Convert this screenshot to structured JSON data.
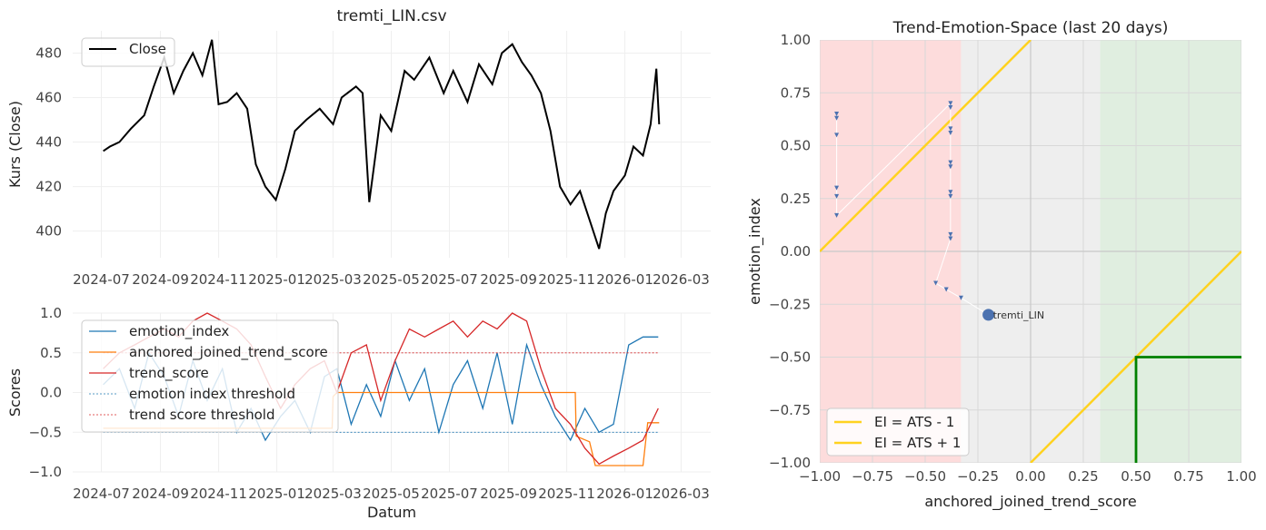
{
  "chart_data": [
    {
      "type": "line",
      "title": "tremti_LIN.csv",
      "xlabel": "",
      "ylabel": "Kurs (Close)",
      "ylim": [
        388,
        490
      ],
      "yticks": [
        400,
        420,
        440,
        460,
        480
      ],
      "xlim": [
        "2024-06-01",
        "2026-04-01"
      ],
      "xticks": [
        "2024-07",
        "2024-09",
        "2024-11",
        "2025-01",
        "2025-03",
        "2025-05",
        "2025-07",
        "2025-09",
        "2025-11",
        "2026-01",
        "2026-03"
      ],
      "grid": true,
      "legend": "top-left",
      "series": [
        {
          "name": "Close",
          "color": "#000000",
          "x": [
            "2024-07-03",
            "2024-07-10",
            "2024-07-20",
            "2024-08-01",
            "2024-08-15",
            "2024-08-25",
            "2024-09-05",
            "2024-09-15",
            "2024-09-25",
            "2024-10-05",
            "2024-10-15",
            "2024-10-25",
            "2024-11-01",
            "2024-11-10",
            "2024-11-20",
            "2024-12-01",
            "2024-12-10",
            "2024-12-20",
            "2024-12-31",
            "2025-01-10",
            "2025-01-20",
            "2025-02-01",
            "2025-02-15",
            "2025-03-01",
            "2025-03-10",
            "2025-03-25",
            "2025-04-01",
            "2025-04-08",
            "2025-04-20",
            "2025-05-01",
            "2025-05-15",
            "2025-05-25",
            "2025-06-10",
            "2025-06-25",
            "2025-07-05",
            "2025-07-20",
            "2025-08-01",
            "2025-08-15",
            "2025-08-25",
            "2025-09-05",
            "2025-09-15",
            "2025-09-25",
            "2025-10-05",
            "2025-10-15",
            "2025-10-25",
            "2025-11-05",
            "2025-11-15",
            "2025-11-25",
            "2025-12-05",
            "2025-12-12",
            "2025-12-20",
            "2026-01-01",
            "2026-01-10",
            "2026-01-20",
            "2026-01-28",
            "2026-02-03",
            "2026-02-06"
          ],
          "values": [
            436,
            438,
            440,
            446,
            452,
            465,
            478,
            462,
            472,
            480,
            470,
            486,
            457,
            458,
            462,
            455,
            430,
            420,
            414,
            428,
            445,
            450,
            455,
            448,
            460,
            465,
            462,
            413,
            452,
            445,
            472,
            468,
            478,
            462,
            472,
            458,
            475,
            466,
            480,
            484,
            476,
            470,
            462,
            445,
            420,
            412,
            418,
            405,
            392,
            408,
            418,
            425,
            438,
            434,
            448,
            473,
            448
          ]
        }
      ]
    },
    {
      "type": "line",
      "title": "",
      "xlabel": "Datum",
      "ylabel": "Scores",
      "ylim": [
        -1.0,
        1.0
      ],
      "yticks": [
        -1.0,
        -0.5,
        0.0,
        0.5,
        1.0
      ],
      "xlim": [
        "2024-06-01",
        "2026-04-01"
      ],
      "xticks": [
        "2024-07",
        "2024-09",
        "2024-11",
        "2025-01",
        "2025-03",
        "2025-05",
        "2025-07",
        "2025-09",
        "2025-11",
        "2026-01",
        "2026-03"
      ],
      "grid": true,
      "legend": "top-left",
      "series": [
        {
          "name": "emotion_index",
          "color": "#1f77b4",
          "x": [
            "2024-07-03",
            "2024-07-20",
            "2024-08-05",
            "2024-08-20",
            "2024-09-05",
            "2024-09-20",
            "2024-10-05",
            "2024-10-20",
            "2024-11-05",
            "2024-11-20",
            "2024-12-05",
            "2024-12-20",
            "2025-01-05",
            "2025-01-20",
            "2025-02-05",
            "2025-02-20",
            "2025-03-05",
            "2025-03-20",
            "2025-04-05",
            "2025-04-20",
            "2025-05-05",
            "2025-05-20",
            "2025-06-05",
            "2025-06-20",
            "2025-07-05",
            "2025-07-20",
            "2025-08-05",
            "2025-08-20",
            "2025-09-05",
            "2025-09-20",
            "2025-10-05",
            "2025-10-20",
            "2025-11-05",
            "2025-11-20",
            "2025-12-05",
            "2025-12-20",
            "2026-01-05",
            "2026-01-20",
            "2026-02-05"
          ],
          "values": [
            0.1,
            0.3,
            -0.2,
            0.5,
            0.2,
            -0.3,
            0.4,
            -0.1,
            0.3,
            -0.5,
            -0.2,
            -0.6,
            -0.3,
            -0.1,
            -0.5,
            0.2,
            0.3,
            -0.4,
            0.1,
            -0.3,
            0.4,
            -0.1,
            0.3,
            -0.5,
            0.1,
            0.4,
            -0.2,
            0.5,
            -0.4,
            0.6,
            0.1,
            -0.3,
            -0.6,
            -0.2,
            -0.5,
            -0.4,
            0.6,
            0.7,
            0.7
          ]
        },
        {
          "name": "anchored_joined_trend_score",
          "color": "#ff7f0e",
          "x": [
            "2024-07-03",
            "2025-02-28",
            "2025-03-01",
            "2025-03-05",
            "2025-11-10",
            "2025-11-11",
            "2025-11-25",
            "2025-12-01",
            "2026-01-20",
            "2026-01-25",
            "2026-02-06"
          ],
          "values": [
            -0.45,
            -0.45,
            -0.05,
            0.0,
            0.0,
            -0.55,
            -0.62,
            -0.92,
            -0.92,
            -0.38,
            -0.38
          ]
        },
        {
          "name": "trend_score",
          "color": "#d62728",
          "x": [
            "2024-07-03",
            "2024-07-20",
            "2024-08-05",
            "2024-08-20",
            "2024-09-05",
            "2024-09-20",
            "2024-10-05",
            "2024-10-20",
            "2024-11-05",
            "2024-11-20",
            "2024-12-05",
            "2024-12-20",
            "2025-01-05",
            "2025-01-20",
            "2025-02-05",
            "2025-02-20",
            "2025-03-05",
            "2025-03-20",
            "2025-04-05",
            "2025-04-20",
            "2025-05-05",
            "2025-05-20",
            "2025-06-05",
            "2025-06-20",
            "2025-07-05",
            "2025-07-20",
            "2025-08-05",
            "2025-08-20",
            "2025-09-05",
            "2025-09-20",
            "2025-10-05",
            "2025-10-20",
            "2025-11-05",
            "2025-11-20",
            "2025-12-05",
            "2025-12-20",
            "2026-01-05",
            "2026-01-20",
            "2026-02-05"
          ],
          "values": [
            0.3,
            0.5,
            0.6,
            0.7,
            0.8,
            0.7,
            0.9,
            1.0,
            0.9,
            0.8,
            0.6,
            0.2,
            -0.2,
            0.1,
            0.3,
            0.4,
            0.0,
            0.5,
            0.6,
            -0.1,
            0.4,
            0.8,
            0.7,
            0.8,
            0.9,
            0.7,
            0.9,
            0.8,
            1.0,
            0.9,
            0.3,
            -0.2,
            -0.4,
            -0.7,
            -0.9,
            -0.8,
            -0.7,
            -0.6,
            -0.2
          ]
        },
        {
          "name": "emotion index threshold",
          "color": "#1f77b4",
          "x": [
            "2024-07-03",
            "2026-02-06"
          ],
          "values": [
            -0.5,
            -0.5
          ]
        },
        {
          "name": "trend score threshold",
          "color": "#d62728",
          "x": [
            "2024-07-03",
            "2026-02-06"
          ],
          "values": [
            0.5,
            0.5
          ]
        }
      ]
    },
    {
      "type": "scatter",
      "title": "Trend-Emotion-Space (last 20 days)",
      "xlabel": "anchored_joined_trend_score",
      "ylabel": "emotion_index",
      "xlim": [
        -1.0,
        1.0
      ],
      "ylim": [
        -1.0,
        1.0
      ],
      "xticks": [
        -1.0,
        -0.75,
        -0.5,
        -0.25,
        0.0,
        0.25,
        0.5,
        0.75,
        1.0
      ],
      "yticks": [
        -1.0,
        -0.75,
        -0.5,
        -0.25,
        0.0,
        0.25,
        0.5,
        0.75,
        1.0
      ],
      "grid": true,
      "legend": "bottom-left",
      "regions": [
        {
          "x_from": -1.0,
          "x_to": -0.33,
          "color": "#fddcdc"
        },
        {
          "x_from": -0.33,
          "x_to": 0.33,
          "color": "#eeeeee"
        },
        {
          "x_from": 0.33,
          "x_to": 1.0,
          "color": "#e0eee0"
        }
      ],
      "series": [
        {
          "name": "EI = ATS - 1",
          "color": "#ffd21f",
          "x": [
            0.0,
            1.0
          ],
          "values": [
            -1.0,
            0.0
          ]
        },
        {
          "name": "EI = ATS + 1",
          "color": "#ffd21f",
          "x": [
            -1.0,
            0.0
          ],
          "values": [
            0.0,
            1.0
          ]
        },
        {
          "name": "",
          "color": "#008000",
          "x": [
            0.5,
            0.5,
            1.0
          ],
          "values": [
            -1.0,
            -0.5,
            -0.5
          ]
        },
        {
          "name": "",
          "color": "#ffffff",
          "x": [
            -0.92,
            -0.92,
            -0.92,
            -0.92,
            -0.92,
            -0.92,
            -0.38,
            -0.38,
            -0.38,
            -0.38,
            -0.38,
            -0.38,
            -0.38,
            -0.38,
            -0.38,
            -0.38,
            -0.45,
            -0.4,
            -0.33,
            -0.2
          ],
          "values": [
            0.65,
            0.63,
            0.55,
            0.3,
            0.26,
            0.17,
            0.7,
            0.68,
            0.58,
            0.56,
            0.42,
            0.4,
            0.28,
            0.26,
            0.08,
            0.06,
            -0.15,
            -0.18,
            -0.22,
            -0.3
          ]
        }
      ],
      "annotations": [
        {
          "text": "tremti_LIN",
          "x": -0.2,
          "y": -0.3
        }
      ],
      "marker_color": "#4c72b0"
    }
  ]
}
